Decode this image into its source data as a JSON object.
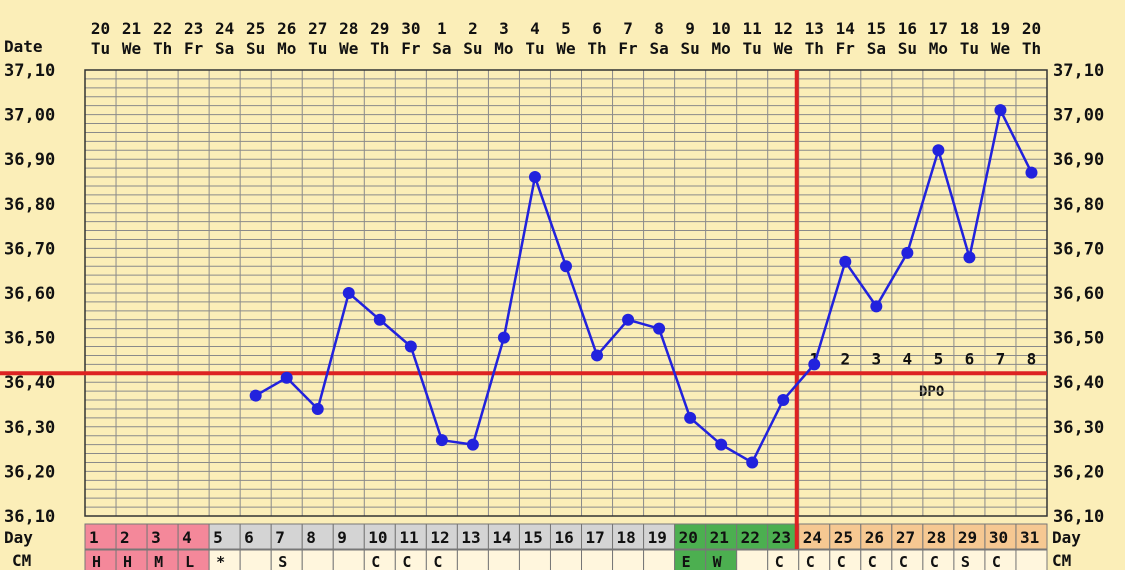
{
  "header": {
    "date_label": "Date",
    "day_label": "Day",
    "cm_label": "CM",
    "dpo_label": "DPO"
  },
  "colors": {
    "background": "#fbeeb8",
    "grid": "#8a8a8a",
    "line": "#2222dd",
    "coverline": "#dd2222",
    "period": "#f4889a",
    "fertile": "#4caf50",
    "luteal": "#f6c892",
    "follicular": "#d4d4d4"
  },
  "chart_data": {
    "type": "line",
    "title": "",
    "ylim": [
      36.1,
      37.1
    ],
    "y_ticks": [
      "36,10",
      "36,20",
      "36,30",
      "36,40",
      "36,50",
      "36,60",
      "36,70",
      "36,80",
      "36,90",
      "37,00",
      "37,10"
    ],
    "dates": [
      "20",
      "21",
      "22",
      "23",
      "24",
      "25",
      "26",
      "27",
      "28",
      "29",
      "30",
      "1",
      "2",
      "3",
      "4",
      "5",
      "6",
      "7",
      "8",
      "9",
      "10",
      "11",
      "12",
      "13",
      "14",
      "15",
      "16",
      "17",
      "18",
      "19",
      "20"
    ],
    "weekdays": [
      "Tu",
      "We",
      "Th",
      "Fr",
      "Sa",
      "Su",
      "Mo",
      "Tu",
      "We",
      "Th",
      "Fr",
      "Sa",
      "Su",
      "Mo",
      "Tu",
      "We",
      "Th",
      "Fr",
      "Sa",
      "Su",
      "Mo",
      "Tu",
      "We",
      "Th",
      "Fr",
      "Sa",
      "Su",
      "Mo",
      "Tu",
      "We",
      "Th"
    ],
    "cycle_days": [
      "1",
      "2",
      "3",
      "4",
      "5",
      "6",
      "7",
      "8",
      "9",
      "10",
      "11",
      "12",
      "13",
      "14",
      "15",
      "16",
      "17",
      "18",
      "19",
      "20",
      "21",
      "22",
      "23",
      "24",
      "25",
      "26",
      "27",
      "28",
      "29",
      "30",
      "31"
    ],
    "day_colors": [
      "#f4889a",
      "#f4889a",
      "#f4889a",
      "#f4889a",
      "#d4d4d4",
      "#d4d4d4",
      "#d4d4d4",
      "#d4d4d4",
      "#d4d4d4",
      "#d4d4d4",
      "#d4d4d4",
      "#d4d4d4",
      "#d4d4d4",
      "#d4d4d4",
      "#d4d4d4",
      "#d4d4d4",
      "#d4d4d4",
      "#d4d4d4",
      "#d4d4d4",
      "#4caf50",
      "#4caf50",
      "#4caf50",
      "#4caf50",
      "#f6c892",
      "#f6c892",
      "#f6c892",
      "#f6c892",
      "#f6c892",
      "#f6c892",
      "#f6c892",
      "#f6c892"
    ],
    "cm": [
      "H",
      "H",
      "M",
      "L",
      "*",
      "",
      "S",
      "",
      "",
      "C",
      "C",
      "C",
      "",
      "",
      "",
      "",
      "",
      "",
      "",
      "E",
      "W",
      "",
      "C",
      "C",
      "C",
      "C",
      "C",
      "C",
      "S",
      "C",
      ""
    ],
    "cm_colors": [
      "#f4889a",
      "#f4889a",
      "#f4889a",
      "#f4889a",
      "#fff6dd",
      "#fff6dd",
      "#fff6dd",
      "#fff6dd",
      "#fff6dd",
      "#fff6dd",
      "#fff6dd",
      "#fff6dd",
      "#fff6dd",
      "#fff6dd",
      "#fff6dd",
      "#fff6dd",
      "#fff6dd",
      "#fff6dd",
      "#fff6dd",
      "#4caf50",
      "#4caf50",
      "#fff6dd",
      "#fff6dd",
      "#fff6dd",
      "#fff6dd",
      "#fff6dd",
      "#fff6dd",
      "#fff6dd",
      "#fff6dd",
      "#fff6dd",
      "#fff6dd"
    ],
    "temps": [
      null,
      null,
      null,
      null,
      null,
      36.37,
      36.41,
      36.34,
      36.6,
      36.54,
      36.48,
      36.27,
      36.26,
      36.5,
      36.86,
      36.66,
      36.46,
      36.54,
      36.52,
      36.32,
      36.26,
      36.22,
      36.36,
      36.44,
      36.67,
      36.57,
      36.69,
      36.92,
      36.68,
      37.01,
      36.87
    ],
    "coverline": 36.42,
    "ovulation_day": 23,
    "dpo_days": [
      "1",
      "2",
      "3",
      "4",
      "5",
      "6",
      "7",
      "8"
    ]
  }
}
